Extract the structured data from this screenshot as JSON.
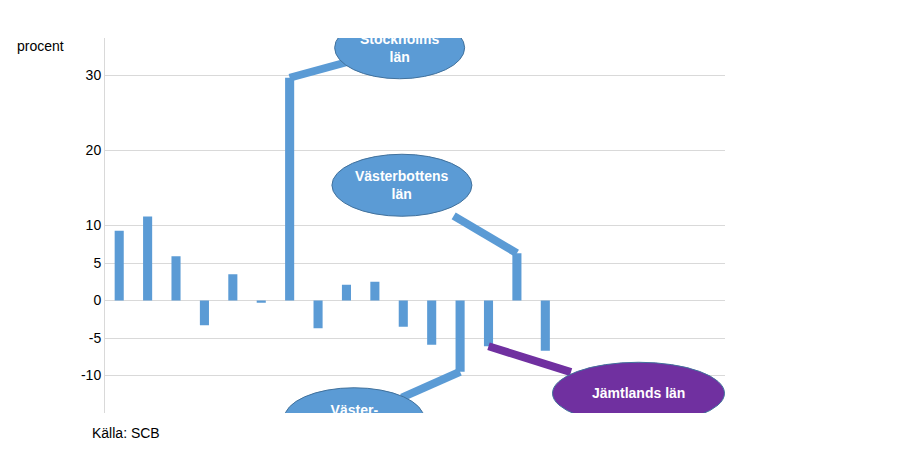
{
  "chart_data": {
    "type": "bar",
    "ylabel": "procent",
    "source": "Källa: SCB",
    "categories": [
      null,
      null,
      null,
      null,
      null,
      null,
      null,
      null,
      null,
      null,
      null,
      null,
      null,
      null,
      null,
      null
    ],
    "values": [
      9.3,
      11.2,
      5.9,
      -3.3,
      3.5,
      -0.3,
      29.7,
      -3.7,
      2.1,
      2.5,
      -3.5,
      -5.9,
      -9.5,
      -6.1,
      6.3,
      -6.7
    ],
    "color": "#5b9bd5",
    "ylim": [
      -15,
      35
    ],
    "yticks": [
      -10,
      -5,
      0,
      5,
      10,
      20,
      30
    ],
    "grid": true,
    "tick_labels": "y",
    "annotations": [
      {
        "text": "Stockholms\nlän",
        "x": 6,
        "y": 29.7,
        "color": "#5b9bd5"
      },
      {
        "text": "Västerbottens\nlän",
        "x": 14,
        "y": 6.3,
        "color": "#5b9bd5"
      },
      {
        "text": "Väster-\nnorrlands län",
        "x": 12,
        "y": -9.5,
        "color": "#5b9bd5"
      },
      {
        "text": "Jämtlands län",
        "x": 13,
        "y": -6.1,
        "color": "#7030a0"
      }
    ]
  }
}
